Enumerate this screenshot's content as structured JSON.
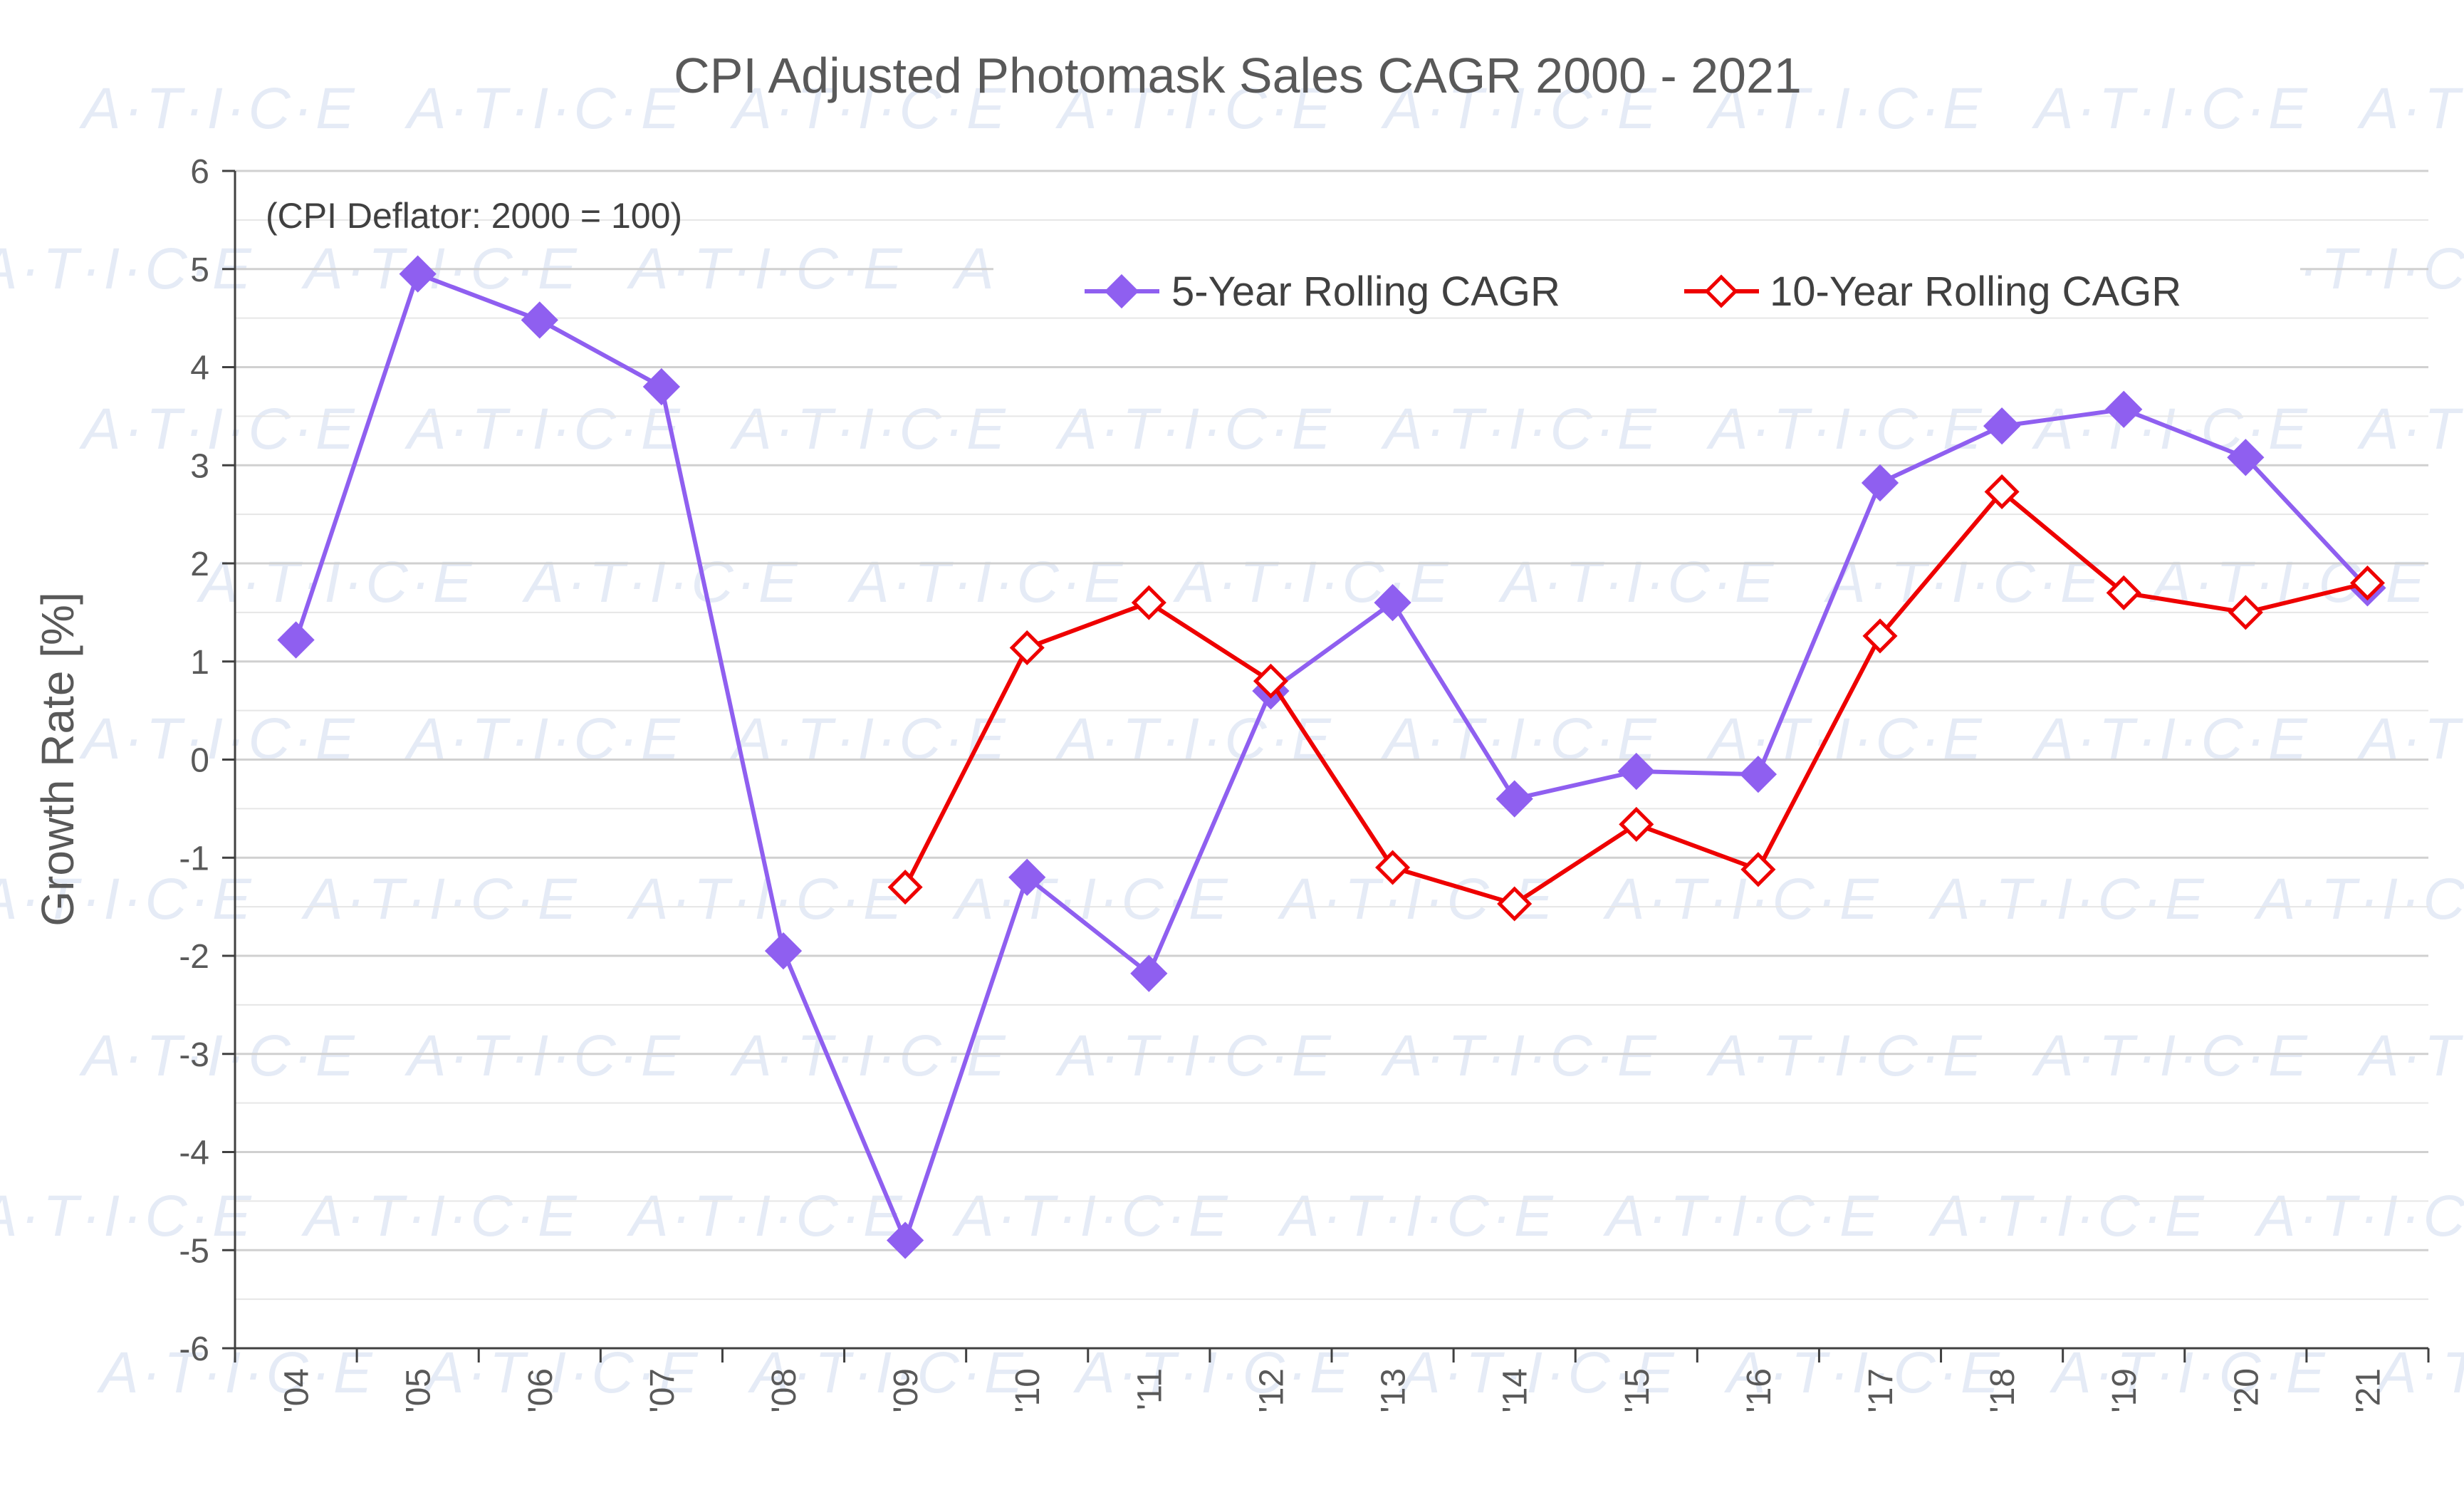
{
  "chart_data": {
    "type": "line",
    "title": "CPI Adjusted Photomask Sales CAGR 2000 - 2021",
    "subtitle": "(CPI Deflator:  2000 = 100)",
    "ylabel": "Growth Rate [%]",
    "xlabel": "",
    "ylim": [
      -6,
      6
    ],
    "yticks": [
      "6",
      "5",
      "4",
      "3",
      "2",
      "1",
      "0",
      "-1",
      "-2",
      "-3",
      "-4",
      "-5",
      "-6"
    ],
    "categories": [
      "'04",
      "'05",
      "'06",
      "'07",
      "'08",
      "'09",
      "'10",
      "'11",
      "'12",
      "'13",
      "'14",
      "'15",
      "'16",
      "'17",
      "'18",
      "'19",
      "'20",
      "'21"
    ],
    "grid": true,
    "legend_position": "top-right",
    "watermark": "A·T·I·C·E",
    "series": [
      {
        "name": "5-Year Rolling CAGR",
        "color": "#8f5ff0",
        "marker": "filled-diamond",
        "values": [
          1.22,
          4.95,
          4.48,
          3.8,
          -1.95,
          -4.9,
          -1.2,
          -2.18,
          0.7,
          1.6,
          -0.4,
          -0.12,
          -0.15,
          2.82,
          3.4,
          3.57,
          3.08,
          1.75
        ]
      },
      {
        "name": "10-Year Rolling CAGR",
        "color": "#ee0000",
        "marker": "hollow-diamond",
        "values": [
          null,
          null,
          null,
          null,
          null,
          -1.3,
          1.14,
          1.6,
          0.8,
          -1.1,
          -1.47,
          -0.66,
          -1.12,
          1.26,
          2.73,
          1.7,
          1.5,
          1.8
        ]
      }
    ]
  }
}
